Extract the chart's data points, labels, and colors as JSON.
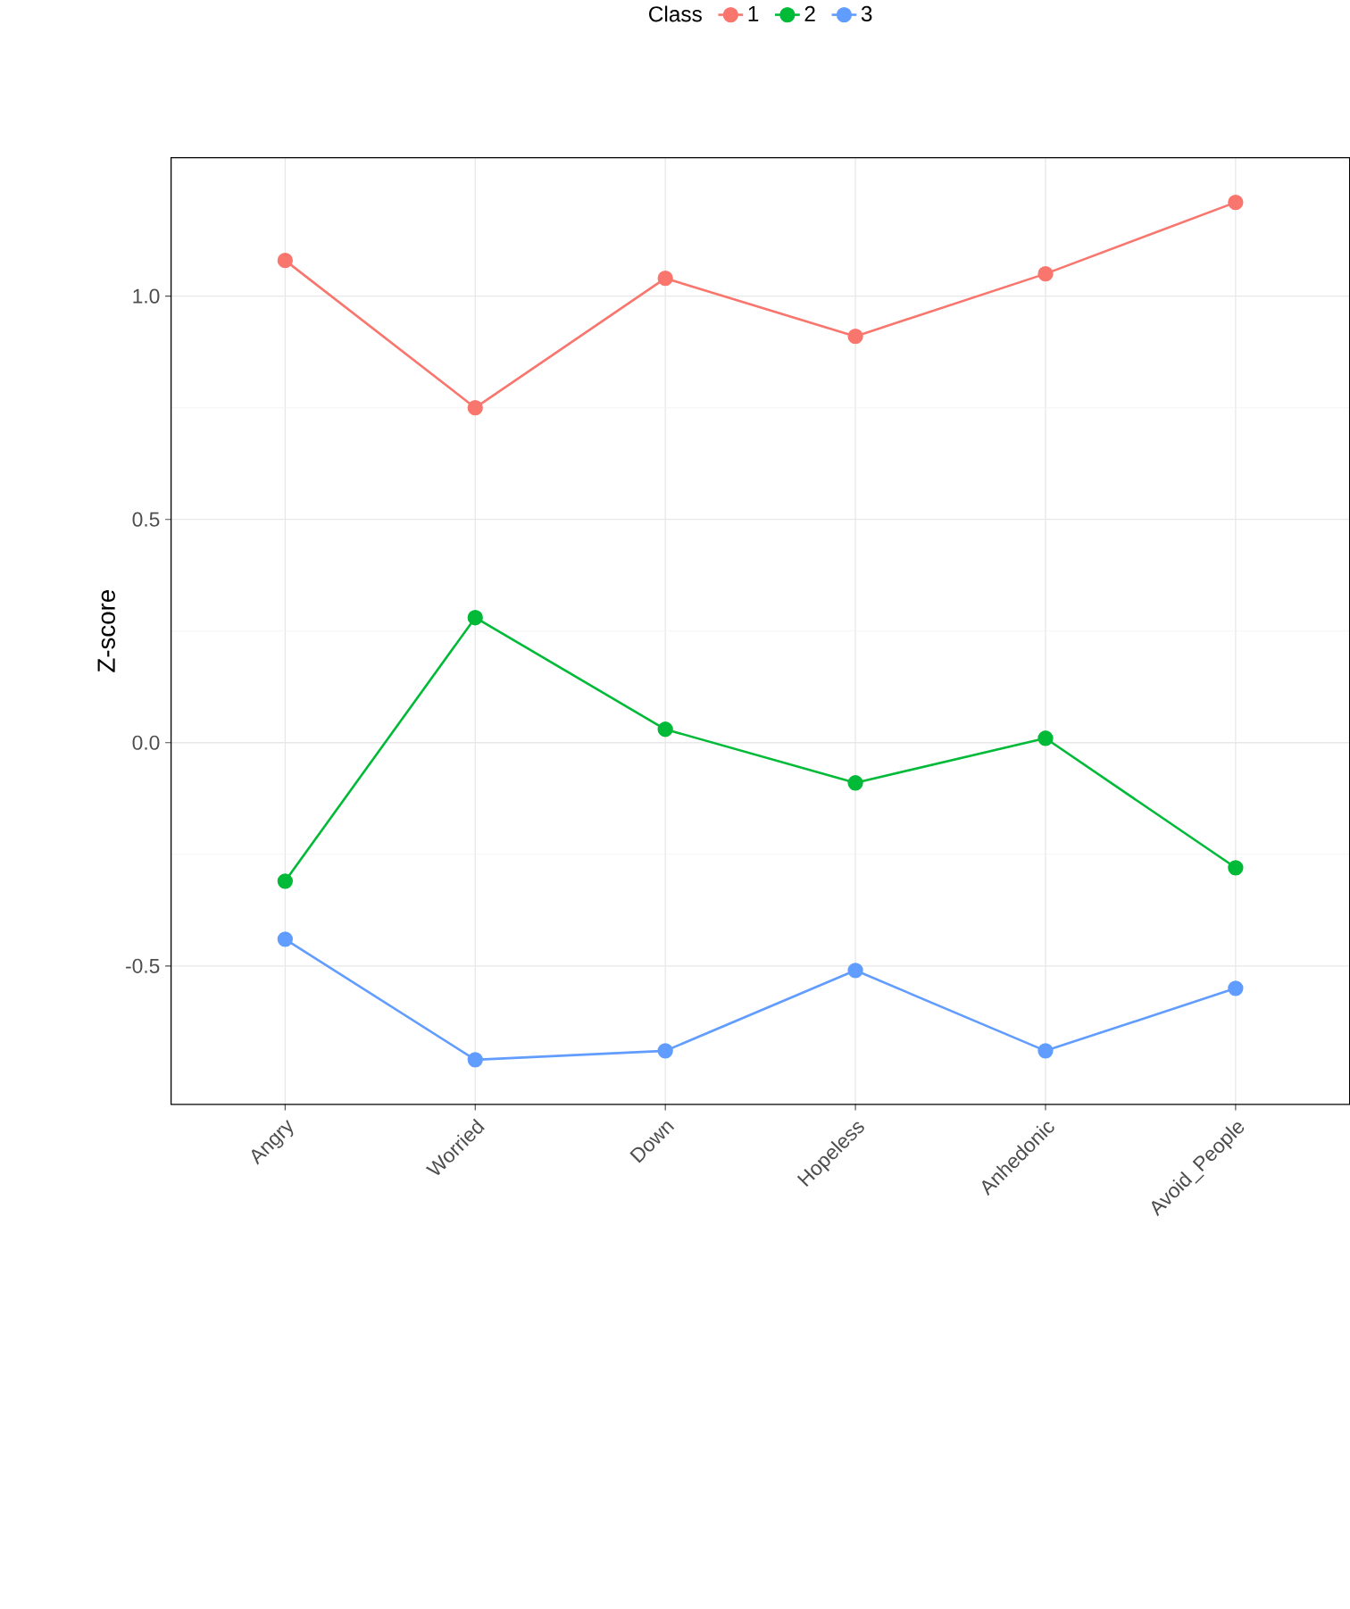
{
  "chart_data": {
    "type": "line",
    "ylabel": "Z-score",
    "legend_title": "Class",
    "categories": [
      "Angry",
      "Worried",
      "Down",
      "Hopeless",
      "Anhedonic",
      "Avoid_People"
    ],
    "series": [
      {
        "name": "1",
        "color": "#f8766d",
        "values": [
          1.08,
          0.75,
          1.04,
          0.91,
          1.05,
          1.21
        ]
      },
      {
        "name": "2",
        "color": "#00ba38",
        "values": [
          -0.31,
          0.28,
          0.03,
          -0.09,
          0.01,
          -0.28
        ]
      },
      {
        "name": "3",
        "color": "#619cff",
        "values": [
          -0.44,
          -0.71,
          -0.69,
          -0.51,
          -0.69,
          -0.55
        ]
      }
    ],
    "ylim": [
      -0.81,
      1.31
    ],
    "yticks": [
      {
        "value": -0.5,
        "label": "-0.5"
      },
      {
        "value": 0,
        "label": "0.0"
      },
      {
        "value": 0.5,
        "label": "0.5"
      },
      {
        "value": 1,
        "label": "1.0"
      }
    ],
    "grid": true,
    "legend": "top",
    "marker": "circle",
    "line_style": "solid"
  }
}
